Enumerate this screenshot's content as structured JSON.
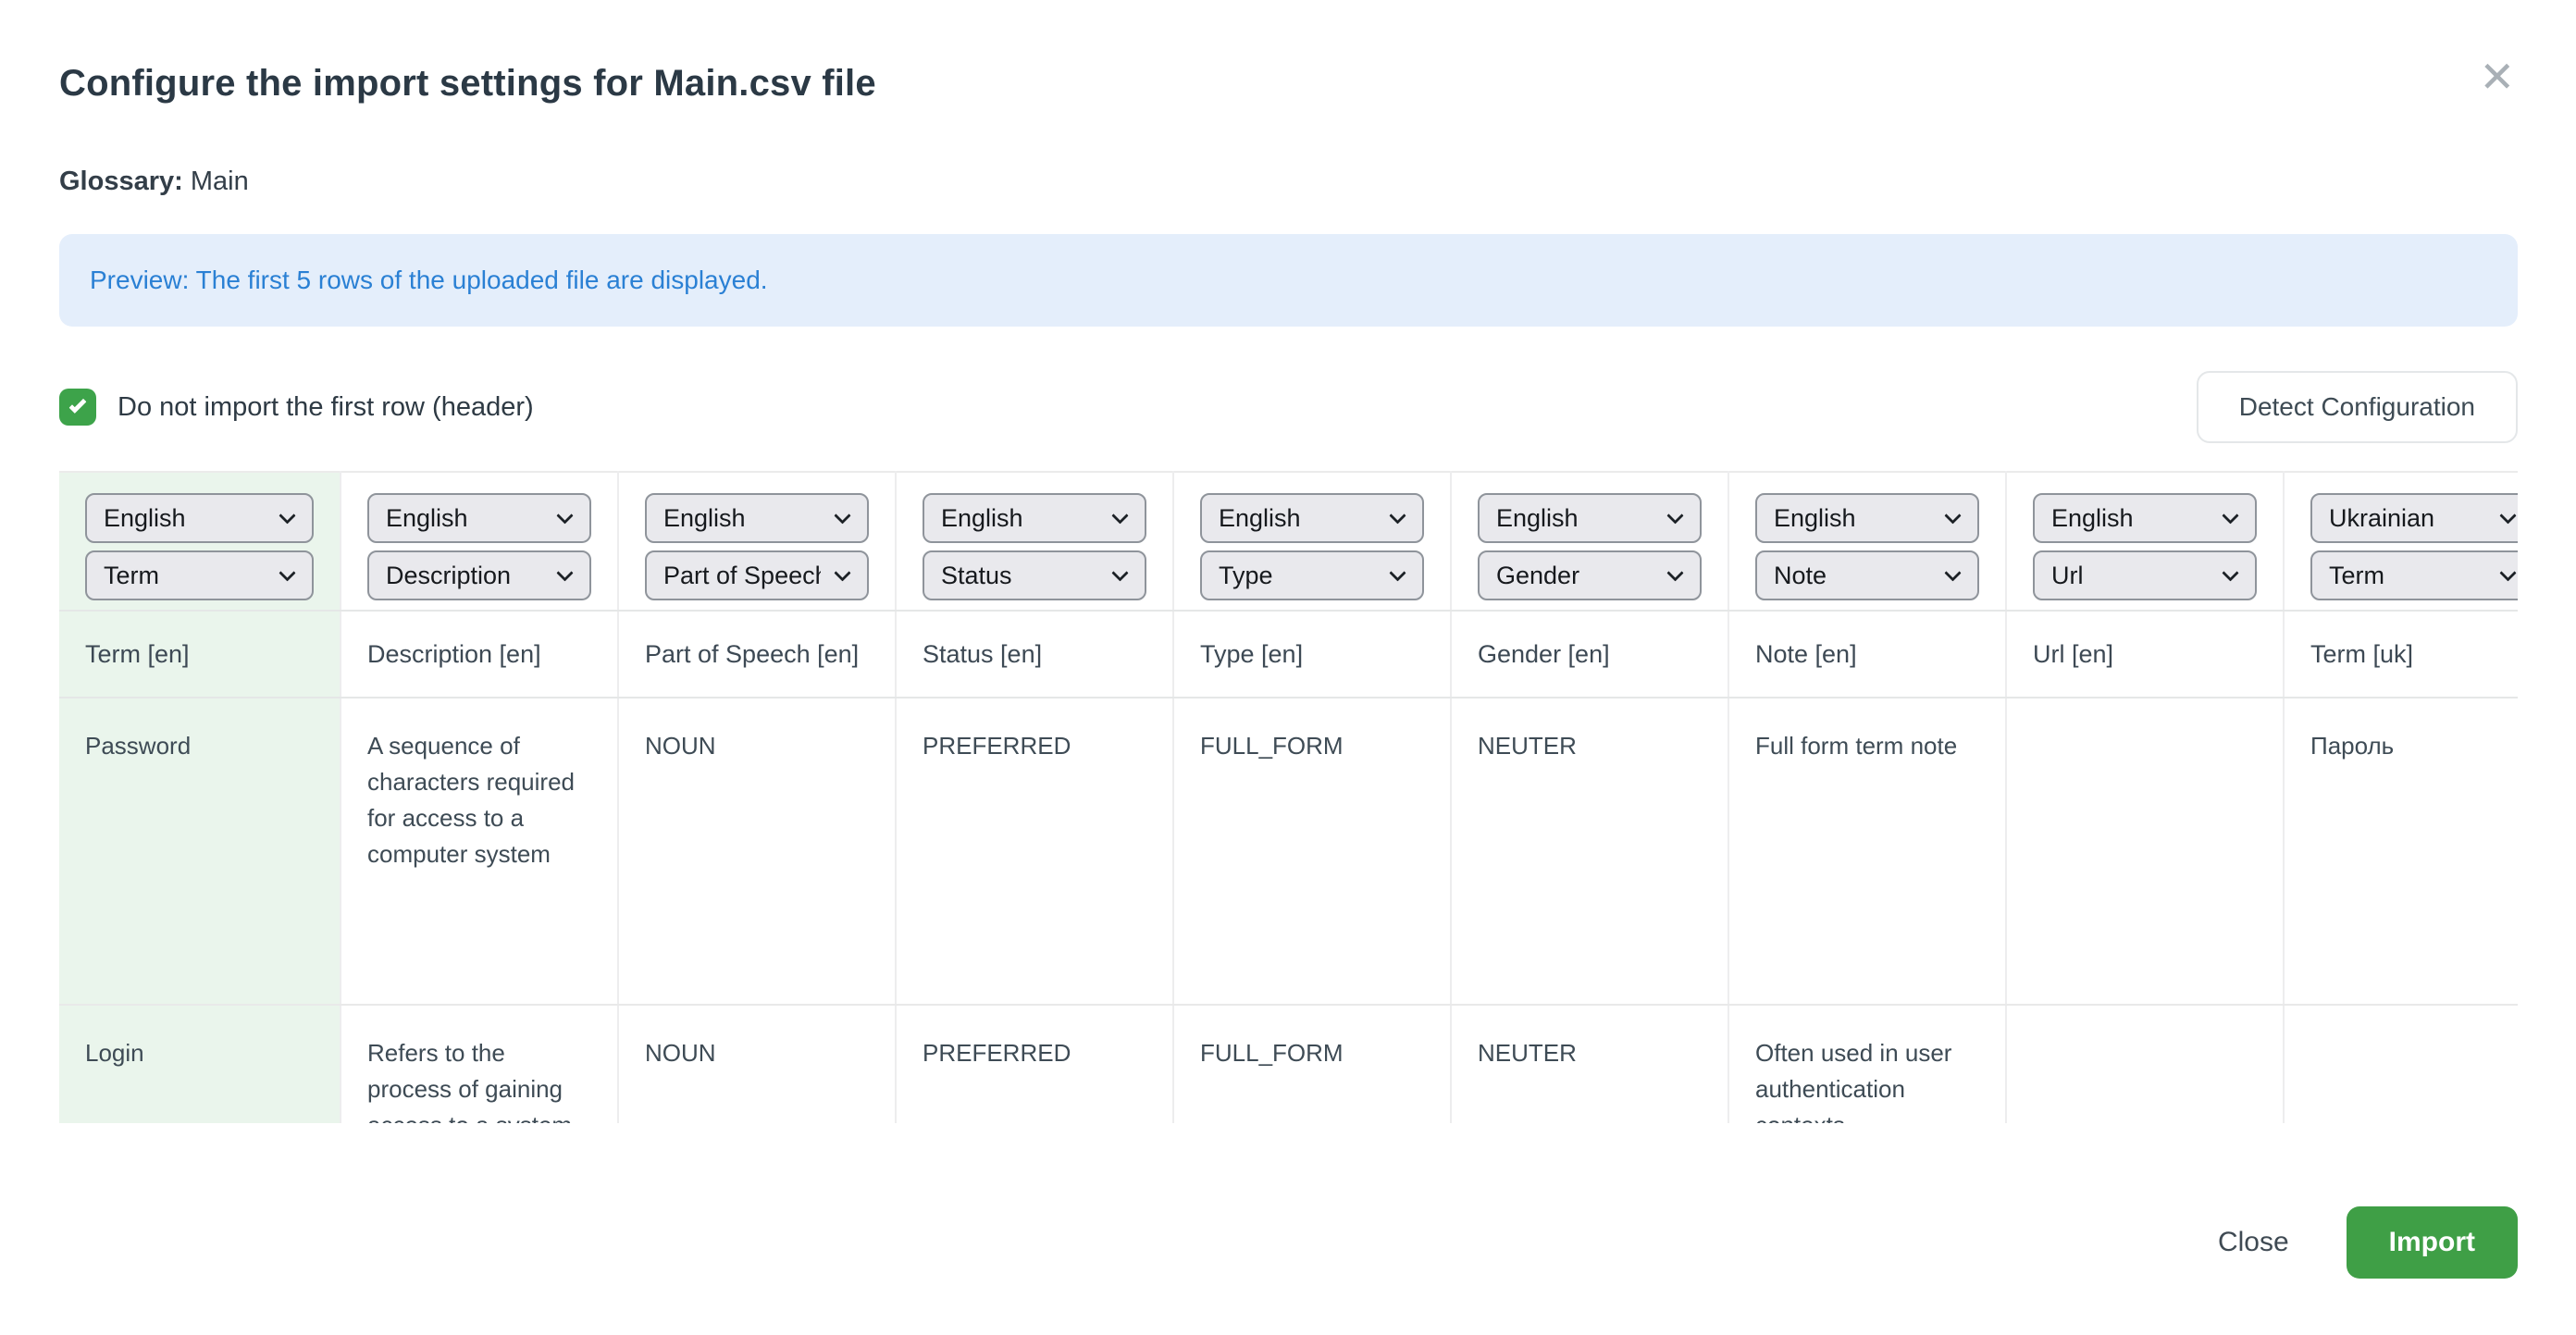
{
  "modal": {
    "title": "Configure the import settings for Main.csv file",
    "glossary_label": "Glossary:",
    "glossary_value": "Main",
    "banner_text": "Preview: The first 5 rows of the uploaded file are displayed.",
    "checkbox_label": "Do not import the first row (header)",
    "detect_button_label": "Detect Configuration",
    "close_button_label": "Close",
    "import_button_label": "Import"
  },
  "icons": {
    "close": "✕"
  },
  "colors": {
    "accent_green": "#3f9f46",
    "checkbox_green": "#3da34a",
    "highlight_column_bg": "#eaf5ec",
    "banner_bg": "#e4eefb",
    "banner_text": "#2a80d4",
    "select_bg": "#e9e9ed",
    "select_border": "#8f949b",
    "title_text": "#2b3945"
  },
  "table": {
    "columns": [
      {
        "language": "English",
        "field": "Term",
        "header": "Term [en]",
        "highlight": true
      },
      {
        "language": "English",
        "field": "Description",
        "header": "Description [en]",
        "highlight": false
      },
      {
        "language": "English",
        "field": "Part of Speech",
        "header": "Part of Speech [en]",
        "highlight": false
      },
      {
        "language": "English",
        "field": "Status",
        "header": "Status [en]",
        "highlight": false
      },
      {
        "language": "English",
        "field": "Type",
        "header": "Type [en]",
        "highlight": false
      },
      {
        "language": "English",
        "field": "Gender",
        "header": "Gender [en]",
        "highlight": false
      },
      {
        "language": "English",
        "field": "Note",
        "header": "Note [en]",
        "highlight": false
      },
      {
        "language": "English",
        "field": "Url",
        "header": "Url [en]",
        "highlight": false
      },
      {
        "language": "Ukrainian",
        "field": "Term",
        "header": "Term [uk]",
        "highlight": false
      }
    ],
    "rows": [
      [
        "Password",
        "A sequence of characters required for access to a computer system",
        "NOUN",
        "PREFERRED",
        "FULL_FORM",
        "NEUTER",
        "Full form term note",
        "",
        "Пароль"
      ],
      [
        "Login",
        "Refers to the process of gaining access to a system",
        "NOUN",
        "PREFERRED",
        "FULL_FORM",
        "NEUTER",
        "Often used in user authentication contexts.",
        "",
        ""
      ]
    ]
  }
}
